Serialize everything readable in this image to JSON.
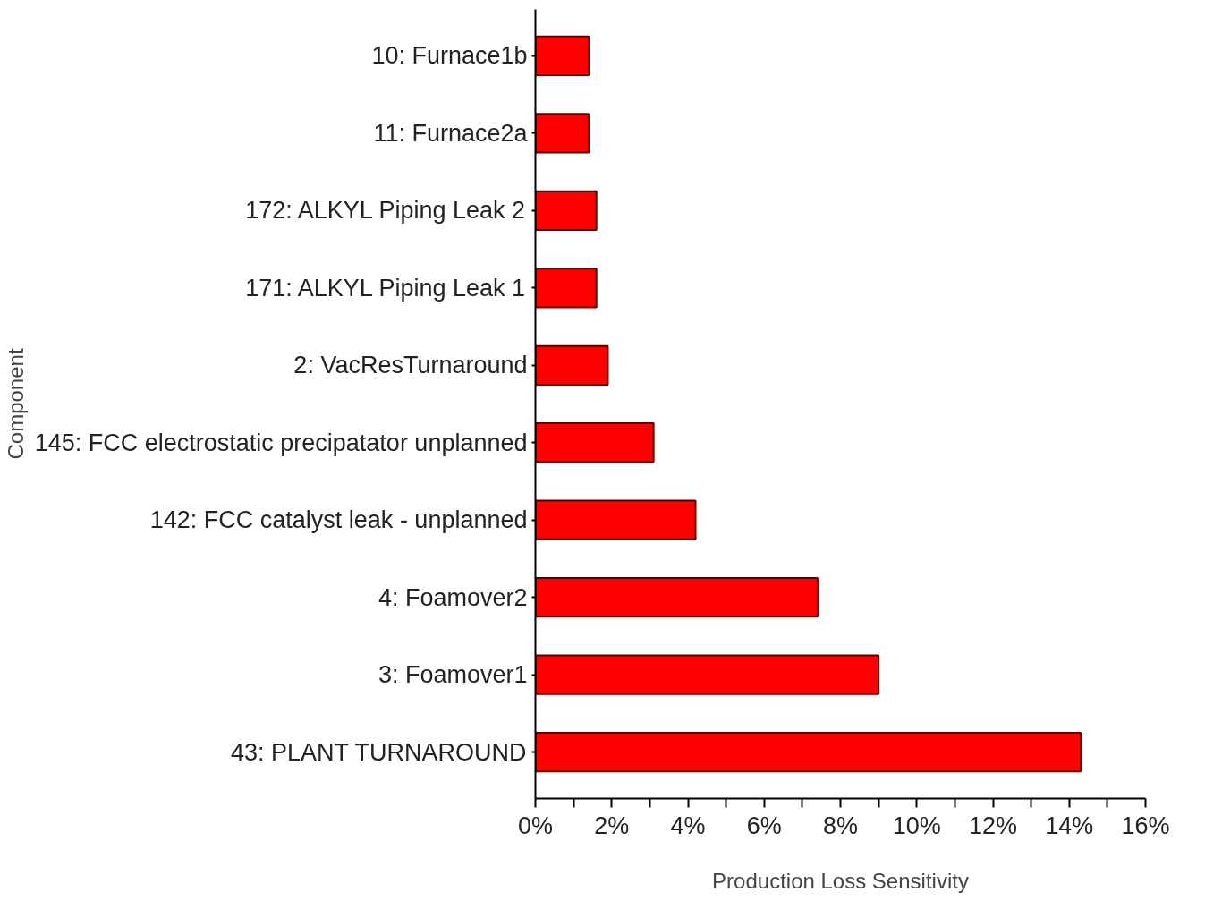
{
  "chart_data": {
    "type": "bar",
    "orientation": "horizontal",
    "xlabel": "Production Loss Sensitivity",
    "ylabel": "Component",
    "categories": [
      "10: Furnace1b",
      "11: Furnace2a",
      "172: ALKYL Piping Leak 2",
      "171: ALKYL Piping Leak 1",
      "2: VacResTurnaround",
      "145: FCC electrostatic precipatator unplanned",
      "142: FCC catalyst leak - unplanned",
      "4: Foamover2",
      "3: Foamover1",
      "43: PLANT TURNAROUND"
    ],
    "values": [
      1.4,
      1.4,
      1.6,
      1.6,
      1.9,
      3.1,
      4.2,
      7.4,
      9.0,
      14.3
    ],
    "color": "#ff0000",
    "xlim": [
      0,
      16
    ],
    "xticks": [
      {
        "value": 0,
        "label": "0%"
      },
      {
        "value": 1,
        "label": null
      },
      {
        "value": 2,
        "label": "2%"
      },
      {
        "value": 3,
        "label": null
      },
      {
        "value": 4,
        "label": "4%"
      },
      {
        "value": 5,
        "label": null
      },
      {
        "value": 6,
        "label": "6%"
      },
      {
        "value": 7,
        "label": null
      },
      {
        "value": 8,
        "label": "8%"
      },
      {
        "value": 9,
        "label": null
      },
      {
        "value": 10,
        "label": "10%"
      },
      {
        "value": 11,
        "label": null
      },
      {
        "value": 12,
        "label": "12%"
      },
      {
        "value": 13,
        "label": null
      },
      {
        "value": 14,
        "label": "14%"
      },
      {
        "value": 15,
        "label": null
      },
      {
        "value": 16,
        "label": "16%"
      }
    ],
    "grid": false
  }
}
